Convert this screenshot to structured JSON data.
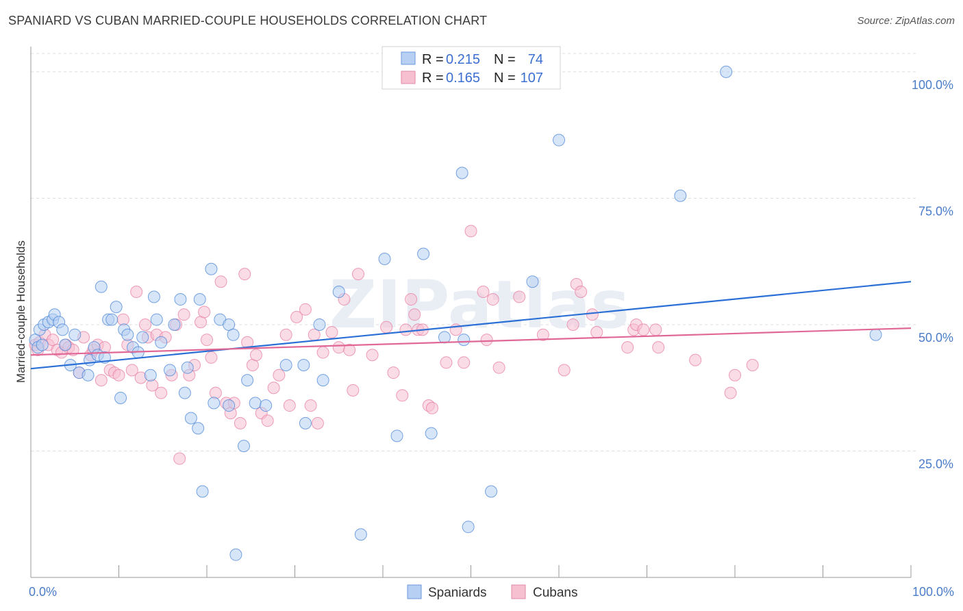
{
  "header": {
    "title": "SPANIARD VS CUBAN MARRIED-COUPLE HOUSEHOLDS CORRELATION CHART",
    "source": "Source: ZipAtlas.com"
  },
  "watermark": "ZIPatlas",
  "colors": {
    "blue": "#4a86d8",
    "blue_fill": "#b7cff2",
    "blue_line": "#2a6fd6",
    "pink": "#e87ea0",
    "pink_fill": "#f6c0d1",
    "pink_line": "#e06896",
    "grid": "#dcdcdc",
    "axis_label": "#4a7cc9"
  },
  "legend": {
    "rows": [
      {
        "r_label": "R =",
        "r_value": "0.215",
        "n_label": "N =",
        "n_value": "74"
      },
      {
        "r_label": "R =",
        "r_value": "0.165",
        "n_label": "N =",
        "n_value": "107"
      }
    ]
  },
  "bottom_legend": {
    "items": [
      {
        "label": "Spaniards"
      },
      {
        "label": "Cubans"
      }
    ]
  },
  "chart_data": {
    "type": "scatter",
    "title": "SPANIARD VS CUBAN MARRIED-COUPLE HOUSEHOLDS CORRELATION CHART",
    "xlabel": "",
    "ylabel": "Married-couple Households",
    "xlim": [
      0,
      100
    ],
    "ylim": [
      0,
      105
    ],
    "x_tick_labels": [
      {
        "value": 0,
        "label": "0.0%"
      },
      {
        "value": 100,
        "label": "100.0%"
      }
    ],
    "y_tick_labels": [
      {
        "value": 25,
        "label": "25.0%"
      },
      {
        "value": 50,
        "label": "50.0%"
      },
      {
        "value": 75,
        "label": "75.0%"
      },
      {
        "value": 100,
        "label": "100.0%"
      }
    ],
    "series": [
      {
        "name": "Spaniards",
        "r": 0.215,
        "n": 74,
        "trend": {
          "x": [
            0,
            100
          ],
          "y": [
            41.3,
            58.5
          ]
        },
        "points": [
          [
            0.5,
            47
          ],
          [
            0.8,
            45.5
          ],
          [
            1,
            49
          ],
          [
            1.3,
            46
          ],
          [
            1.5,
            50
          ],
          [
            2,
            50.5
          ],
          [
            2.5,
            51
          ],
          [
            2.7,
            52
          ],
          [
            3.2,
            50.5
          ],
          [
            3.6,
            49
          ],
          [
            3.9,
            46
          ],
          [
            4.5,
            42
          ],
          [
            5,
            48
          ],
          [
            5.5,
            40.5
          ],
          [
            6.5,
            40
          ],
          [
            6.7,
            43
          ],
          [
            7.2,
            45.5
          ],
          [
            7.6,
            44
          ],
          [
            8,
            57.5
          ],
          [
            8.4,
            43.5
          ],
          [
            8.8,
            51
          ],
          [
            9.2,
            51
          ],
          [
            9.7,
            53.5
          ],
          [
            10.2,
            35.5
          ],
          [
            10.6,
            49
          ],
          [
            11,
            48
          ],
          [
            11.6,
            45.5
          ],
          [
            12.2,
            44.5
          ],
          [
            12.7,
            47.5
          ],
          [
            13.6,
            40
          ],
          [
            14,
            55.5
          ],
          [
            14.3,
            51
          ],
          [
            14.8,
            46.5
          ],
          [
            15.8,
            41
          ],
          [
            16.3,
            50
          ],
          [
            17,
            55
          ],
          [
            17.5,
            36.5
          ],
          [
            17.8,
            41.5
          ],
          [
            18.2,
            31.5
          ],
          [
            19,
            29.5
          ],
          [
            19.2,
            55
          ],
          [
            19.5,
            17
          ],
          [
            20.5,
            61
          ],
          [
            20.8,
            34.5
          ],
          [
            21.5,
            51
          ],
          [
            22.5,
            50
          ],
          [
            22.5,
            34
          ],
          [
            23,
            48
          ],
          [
            23.3,
            4.5
          ],
          [
            24.6,
            39
          ],
          [
            25.5,
            34.5
          ],
          [
            26.7,
            34
          ],
          [
            24.2,
            26
          ],
          [
            29,
            42
          ],
          [
            31,
            42
          ],
          [
            31.2,
            30.5
          ],
          [
            32.8,
            50
          ],
          [
            33.2,
            39
          ],
          [
            35,
            56.5
          ],
          [
            40.2,
            63
          ],
          [
            41.6,
            28
          ],
          [
            44.6,
            64
          ],
          [
            45.5,
            28.5
          ],
          [
            47,
            47.5
          ],
          [
            49,
            80
          ],
          [
            49.2,
            47
          ],
          [
            49.7,
            10
          ],
          [
            52.3,
            17
          ],
          [
            57,
            58.5
          ],
          [
            60,
            86.5
          ],
          [
            73.8,
            75.5
          ],
          [
            79,
            100
          ],
          [
            96,
            48
          ],
          [
            37.5,
            8.5
          ]
        ]
      },
      {
        "name": "Cubans",
        "r": 0.165,
        "n": 107,
        "trend": {
          "x": [
            0,
            100
          ],
          "y": [
            44.0,
            49.3
          ]
        },
        "points": [
          [
            0.5,
            46
          ],
          [
            0.8,
            45
          ],
          [
            1,
            46.5
          ],
          [
            1.6,
            48
          ],
          [
            2,
            46
          ],
          [
            2.5,
            47
          ],
          [
            3,
            45
          ],
          [
            3.5,
            44.5
          ],
          [
            4,
            46
          ],
          [
            4.3,
            45.5
          ],
          [
            4.8,
            45
          ],
          [
            5.5,
            40.5
          ],
          [
            6,
            47.5
          ],
          [
            6.8,
            44
          ],
          [
            7.1,
            45
          ],
          [
            7.6,
            46
          ],
          [
            8,
            39
          ],
          [
            8.4,
            45.5
          ],
          [
            9,
            41
          ],
          [
            9.5,
            40.5
          ],
          [
            10,
            40
          ],
          [
            10.5,
            51
          ],
          [
            11,
            46
          ],
          [
            11.5,
            41
          ],
          [
            12,
            56.5
          ],
          [
            12.5,
            39.5
          ],
          [
            13,
            50
          ],
          [
            13.3,
            47.5
          ],
          [
            13.8,
            38
          ],
          [
            14.3,
            48
          ],
          [
            14.8,
            36.5
          ],
          [
            15.3,
            47.5
          ],
          [
            16,
            40
          ],
          [
            16.5,
            50
          ],
          [
            16.9,
            23.5
          ],
          [
            17.4,
            52
          ],
          [
            18,
            40
          ],
          [
            18.6,
            42
          ],
          [
            19.3,
            50.5
          ],
          [
            19.7,
            52.5
          ],
          [
            20,
            47
          ],
          [
            20.5,
            43.5
          ],
          [
            21,
            36.5
          ],
          [
            21.6,
            58.5
          ],
          [
            22.2,
            34.5
          ],
          [
            22.7,
            32.5
          ],
          [
            23.1,
            34.5
          ],
          [
            23.8,
            30.5
          ],
          [
            24.3,
            60
          ],
          [
            24.6,
            46.5
          ],
          [
            25.2,
            42
          ],
          [
            25.6,
            44
          ],
          [
            26.2,
            32.5
          ],
          [
            26.9,
            31
          ],
          [
            27.6,
            37.5
          ],
          [
            28.2,
            40
          ],
          [
            29,
            48
          ],
          [
            29.4,
            34
          ],
          [
            30.2,
            51.5
          ],
          [
            31.2,
            53
          ],
          [
            31.8,
            34
          ],
          [
            32.2,
            48
          ],
          [
            32.6,
            30.5
          ],
          [
            33.2,
            44.5
          ],
          [
            34.2,
            48.5
          ],
          [
            35,
            45.5
          ],
          [
            35.6,
            55
          ],
          [
            36.2,
            45
          ],
          [
            36.6,
            37
          ],
          [
            37.2,
            60
          ],
          [
            38.8,
            44
          ],
          [
            40.4,
            49.5
          ],
          [
            41.2,
            40.5
          ],
          [
            42.2,
            36
          ],
          [
            42.6,
            49
          ],
          [
            43.2,
            55
          ],
          [
            43.6,
            52
          ],
          [
            44,
            49
          ],
          [
            44.5,
            49
          ],
          [
            45.2,
            34
          ],
          [
            45.6,
            33.5
          ],
          [
            47.2,
            42.5
          ],
          [
            48.3,
            49
          ],
          [
            49.2,
            42.5
          ],
          [
            50,
            68.5
          ],
          [
            51.4,
            56.5
          ],
          [
            51.8,
            47
          ],
          [
            52.5,
            55
          ],
          [
            53.2,
            41.5
          ],
          [
            55.5,
            55.5
          ],
          [
            58.2,
            48
          ],
          [
            60.6,
            41
          ],
          [
            61.6,
            50
          ],
          [
            62,
            58
          ],
          [
            62.5,
            56.5
          ],
          [
            63.8,
            52
          ],
          [
            64.3,
            48.5
          ],
          [
            67.8,
            45.5
          ],
          [
            68.5,
            49
          ],
          [
            68.8,
            50
          ],
          [
            69.6,
            49
          ],
          [
            71,
            49
          ],
          [
            71.3,
            45.5
          ],
          [
            75.5,
            43
          ],
          [
            79.5,
            36.5
          ],
          [
            80,
            40
          ],
          [
            82,
            42
          ]
        ]
      }
    ]
  }
}
